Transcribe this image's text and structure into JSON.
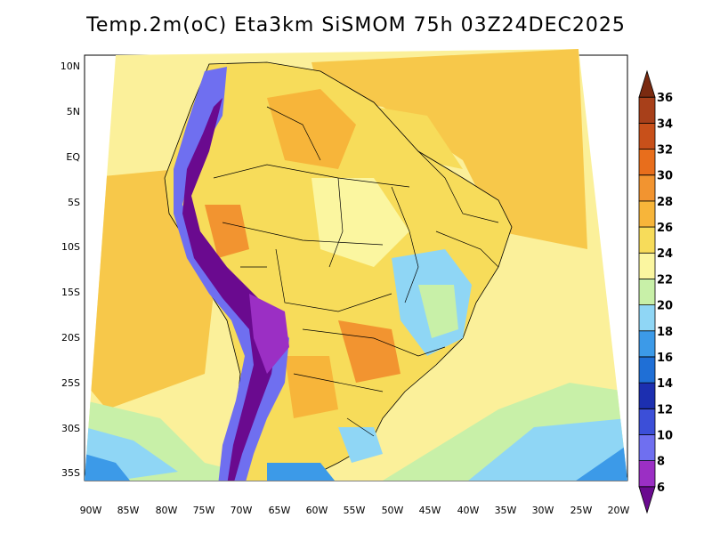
{
  "title": "Temp.2m(oC) Eta3km SiSMOM 75h 03Z24DEC2025",
  "lat_labels": [
    "10N",
    "5N",
    "EQ",
    "5S",
    "10S",
    "15S",
    "20S",
    "25S",
    "30S",
    "35S"
  ],
  "lon_labels": [
    "90W",
    "85W",
    "80W",
    "75W",
    "70W",
    "65W",
    "60W",
    "55W",
    "50W",
    "45W",
    "40W",
    "35W",
    "30W",
    "25W",
    "20W"
  ],
  "colorbar": {
    "labels": [
      "6",
      "8",
      "10",
      "12",
      "14",
      "16",
      "18",
      "20",
      "22",
      "24",
      "26",
      "28",
      "30",
      "32",
      "34",
      "36"
    ],
    "colors": [
      "#6a0a8f",
      "#9b2fc4",
      "#6f6ff0",
      "#3c4fd8",
      "#1c2fb0",
      "#1f6fd6",
      "#3c9ae8",
      "#8fd6f5",
      "#c8f0a8",
      "#fbf6a0",
      "#f7dc5a",
      "#f7b53a",
      "#f29430",
      "#e86e1c",
      "#c8501a",
      "#a8401a",
      "#7a2a10"
    ]
  }
}
